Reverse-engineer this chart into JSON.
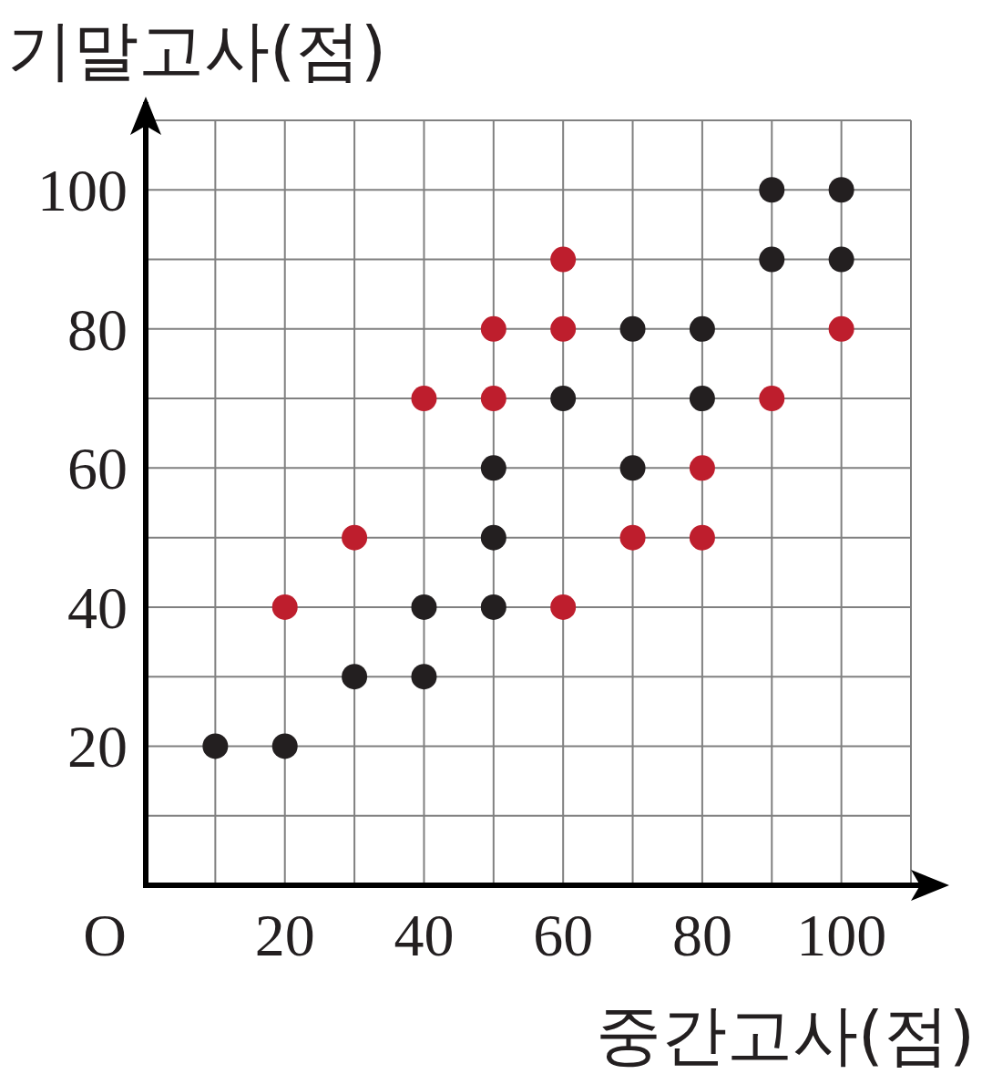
{
  "chart_data": {
    "type": "scatter",
    "xlabel": "중간고사(점)",
    "ylabel": "기말고사(점)",
    "xlim": [
      0,
      110
    ],
    "ylim": [
      0,
      110
    ],
    "annotations": [
      "O"
    ],
    "xticks": [
      {
        "value": 10,
        "label": null
      },
      20,
      {
        "value": 30,
        "label": null
      },
      40,
      {
        "value": 50,
        "label": null
      },
      60,
      {
        "value": 70,
        "label": null
      },
      80,
      {
        "value": 90,
        "label": null
      },
      100,
      {
        "value": 110,
        "label": null
      }
    ],
    "yticks": [
      {
        "value": 10,
        "label": null
      },
      20,
      {
        "value": 30,
        "label": null
      },
      40,
      {
        "value": 50,
        "label": null
      },
      60,
      {
        "value": 70,
        "label": null
      },
      80,
      {
        "value": 90,
        "label": null
      },
      100,
      {
        "value": 110,
        "label": null
      }
    ],
    "grid": true,
    "marker": "circle",
    "series": [
      {
        "color": "#231f20",
        "x": [
          10,
          20,
          30,
          40,
          40,
          50,
          50,
          50,
          60,
          70,
          70,
          80,
          80,
          90,
          90,
          100,
          100
        ],
        "values": [
          20,
          20,
          30,
          30,
          40,
          40,
          50,
          60,
          70,
          80,
          60,
          80,
          70,
          100,
          90,
          100,
          90
        ]
      },
      {
        "color": "#be1e2d",
        "x": [
          20,
          30,
          40,
          50,
          50,
          60,
          60,
          60,
          70,
          80,
          80,
          90,
          100
        ],
        "values": [
          40,
          50,
          70,
          70,
          80,
          80,
          90,
          40,
          50,
          60,
          50,
          70,
          80
        ]
      }
    ]
  }
}
